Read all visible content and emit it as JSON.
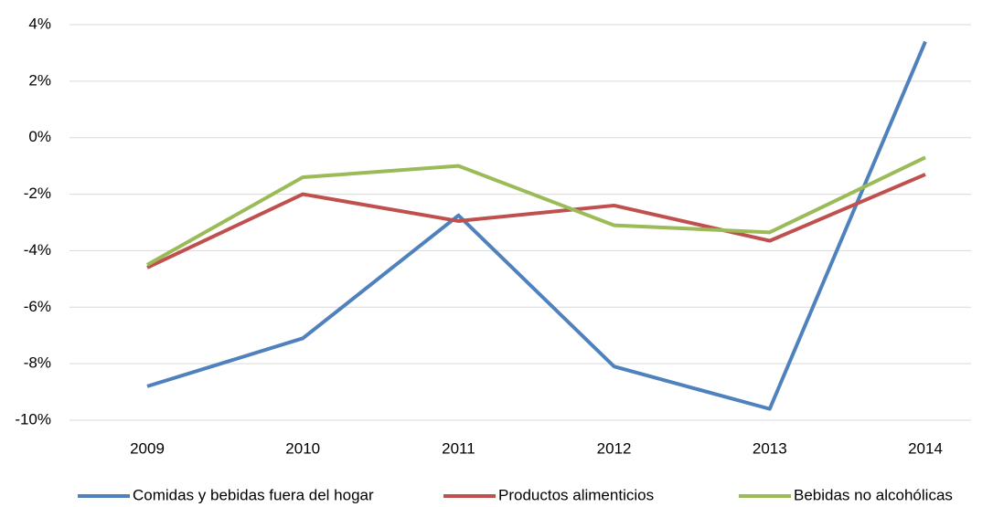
{
  "chart_data": {
    "type": "line",
    "categories": [
      "2009",
      "2010",
      "2011",
      "2012",
      "2013",
      "2014"
    ],
    "series": [
      {
        "name": "Comidas y bebidas fuera del hogar",
        "color": "#4f81bd",
        "values": [
          -8.8,
          -7.1,
          -2.75,
          -8.1,
          -9.6,
          3.4
        ]
      },
      {
        "name": "Productos alimenticios",
        "color": "#c0504d",
        "values": [
          -4.6,
          -2.0,
          -2.95,
          -2.4,
          -3.65,
          -1.3
        ]
      },
      {
        "name": "Bebidas no alcohólicas",
        "color": "#9bbb59",
        "values": [
          -4.5,
          -1.4,
          -1.0,
          -3.1,
          -3.35,
          -0.7
        ]
      }
    ],
    "ylim": [
      -10,
      4
    ],
    "yticks": [
      {
        "value": -10,
        "label": "-10%"
      },
      {
        "value": -8,
        "label": "-8%"
      },
      {
        "value": -6,
        "label": "-6%"
      },
      {
        "value": -4,
        "label": "-4%"
      },
      {
        "value": -2,
        "label": "-2%"
      },
      {
        "value": 0,
        "label": "0%"
      },
      {
        "value": 2,
        "label": "2%"
      },
      {
        "value": 4,
        "label": "4%"
      }
    ],
    "grid": true,
    "legend": "bottom"
  }
}
